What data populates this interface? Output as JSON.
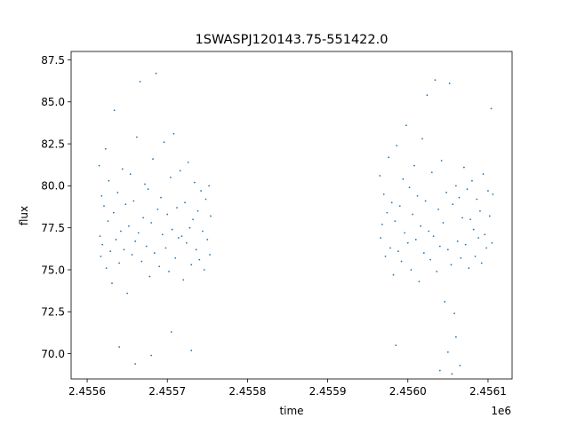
{
  "chart_data": {
    "type": "scatter",
    "title": "1SWASPJ120143.75-551422.0",
    "xlabel": "time",
    "ylabel": "flux",
    "x_offset_label": "1e6",
    "xlim": [
      2455580,
      2456130
    ],
    "ylim": [
      68.5,
      88.0
    ],
    "x_ticks": [
      2455600,
      2455700,
      2455800,
      2455900,
      2456000,
      2456100
    ],
    "x_tick_labels": [
      "2.4556",
      "2.4557",
      "2.4558",
      "2.4559",
      "2.4560",
      "2.4561"
    ],
    "y_ticks": [
      70.0,
      72.5,
      75.0,
      77.5,
      80.0,
      82.5,
      85.0,
      87.5
    ],
    "y_tick_labels": [
      "70.0",
      "72.5",
      "75.0",
      "77.5",
      "80.0",
      "82.5",
      "85.0",
      "87.5"
    ],
    "grid": false,
    "marker_color": "#1f77b4",
    "series": [
      {
        "values": [
          [
            2455615,
            81.2
          ],
          [
            2455616,
            77.0
          ],
          [
            2455617,
            75.8
          ],
          [
            2455618,
            79.4
          ],
          [
            2455619,
            76.5
          ],
          [
            2455621,
            78.8
          ],
          [
            2455623,
            82.2
          ],
          [
            2455624,
            75.1
          ],
          [
            2455626,
            77.9
          ],
          [
            2455627,
            80.3
          ],
          [
            2455629,
            76.1
          ],
          [
            2455631,
            74.2
          ],
          [
            2455633,
            78.4
          ],
          [
            2455634,
            84.5
          ],
          [
            2455636,
            76.8
          ],
          [
            2455638,
            79.6
          ],
          [
            2455640,
            75.4
          ],
          [
            2455642,
            77.3
          ],
          [
            2455644,
            81.0
          ],
          [
            2455646,
            76.2
          ],
          [
            2455648,
            78.9
          ],
          [
            2455650,
            73.6
          ],
          [
            2455652,
            77.6
          ],
          [
            2455654,
            80.7
          ],
          [
            2455656,
            75.9
          ],
          [
            2455658,
            79.1
          ],
          [
            2455660,
            76.7
          ],
          [
            2455662,
            82.9
          ],
          [
            2455664,
            77.2
          ],
          [
            2455666,
            86.2
          ],
          [
            2455668,
            75.5
          ],
          [
            2455670,
            78.1
          ],
          [
            2455672,
            80.1
          ],
          [
            2455674,
            76.4
          ],
          [
            2455676,
            79.8
          ],
          [
            2455678,
            74.6
          ],
          [
            2455680,
            77.8
          ],
          [
            2455682,
            81.6
          ],
          [
            2455684,
            76.0
          ],
          [
            2455686,
            86.7
          ],
          [
            2455688,
            78.6
          ],
          [
            2455690,
            75.2
          ],
          [
            2455692,
            79.3
          ],
          [
            2455694,
            77.1
          ],
          [
            2455696,
            82.6
          ],
          [
            2455698,
            76.3
          ],
          [
            2455700,
            78.3
          ],
          [
            2455702,
            74.9
          ],
          [
            2455704,
            80.5
          ],
          [
            2455706,
            77.4
          ],
          [
            2455708,
            83.1
          ],
          [
            2455710,
            75.7
          ],
          [
            2455712,
            78.7
          ],
          [
            2455714,
            76.9
          ],
          [
            2455716,
            80.9
          ],
          [
            2455718,
            77.0
          ],
          [
            2455720,
            74.4
          ],
          [
            2455722,
            79.0
          ],
          [
            2455724,
            76.6
          ],
          [
            2455726,
            81.4
          ],
          [
            2455728,
            77.5
          ],
          [
            2455730,
            75.3
          ],
          [
            2455732,
            78.0
          ],
          [
            2455734,
            80.2
          ],
          [
            2455736,
            76.2
          ],
          [
            2455738,
            78.5
          ],
          [
            2455740,
            75.6
          ],
          [
            2455742,
            79.7
          ],
          [
            2455744,
            77.3
          ],
          [
            2455746,
            75.0
          ],
          [
            2455748,
            79.2
          ],
          [
            2455750,
            76.8
          ],
          [
            2455752,
            80.0
          ],
          [
            2455753,
            75.9
          ],
          [
            2455754,
            78.2
          ],
          [
            2455640,
            70.4
          ],
          [
            2455660,
            69.4
          ],
          [
            2455680,
            69.9
          ],
          [
            2455705,
            71.3
          ],
          [
            2455730,
            70.2
          ],
          [
            2455965,
            80.6
          ],
          [
            2455966,
            76.9
          ],
          [
            2455968,
            77.7
          ],
          [
            2455970,
            79.5
          ],
          [
            2455972,
            75.8
          ],
          [
            2455974,
            78.4
          ],
          [
            2455976,
            81.7
          ],
          [
            2455978,
            76.3
          ],
          [
            2455980,
            79.0
          ],
          [
            2455982,
            74.7
          ],
          [
            2455984,
            77.9
          ],
          [
            2455986,
            82.4
          ],
          [
            2455988,
            76.1
          ],
          [
            2455990,
            78.8
          ],
          [
            2455992,
            75.5
          ],
          [
            2455994,
            80.4
          ],
          [
            2455996,
            77.2
          ],
          [
            2455998,
            83.6
          ],
          [
            2456000,
            76.6
          ],
          [
            2456002,
            79.9
          ],
          [
            2456004,
            75.0
          ],
          [
            2456006,
            78.3
          ],
          [
            2456008,
            81.2
          ],
          [
            2456010,
            76.8
          ],
          [
            2456012,
            79.4
          ],
          [
            2456014,
            74.3
          ],
          [
            2456016,
            77.6
          ],
          [
            2456018,
            82.8
          ],
          [
            2456020,
            76.0
          ],
          [
            2456022,
            79.1
          ],
          [
            2456024,
            85.4
          ],
          [
            2456026,
            77.3
          ],
          [
            2456028,
            75.6
          ],
          [
            2456030,
            80.8
          ],
          [
            2456032,
            77.0
          ],
          [
            2456034,
            86.3
          ],
          [
            2456036,
            74.9
          ],
          [
            2456038,
            78.6
          ],
          [
            2456040,
            76.4
          ],
          [
            2456042,
            81.5
          ],
          [
            2456044,
            77.8
          ],
          [
            2456046,
            73.1
          ],
          [
            2456048,
            79.6
          ],
          [
            2456050,
            76.2
          ],
          [
            2456052,
            86.1
          ],
          [
            2456054,
            75.3
          ],
          [
            2456056,
            78.9
          ],
          [
            2456058,
            72.4
          ],
          [
            2456060,
            80.0
          ],
          [
            2456062,
            76.7
          ],
          [
            2456064,
            79.3
          ],
          [
            2456066,
            75.7
          ],
          [
            2456068,
            78.1
          ],
          [
            2456070,
            81.1
          ],
          [
            2456072,
            76.5
          ],
          [
            2456074,
            79.8
          ],
          [
            2456076,
            75.1
          ],
          [
            2456078,
            78.0
          ],
          [
            2456080,
            80.3
          ],
          [
            2456082,
            77.4
          ],
          [
            2456084,
            75.8
          ],
          [
            2456086,
            79.2
          ],
          [
            2456088,
            76.9
          ],
          [
            2456090,
            78.5
          ],
          [
            2456092,
            75.4
          ],
          [
            2456094,
            80.7
          ],
          [
            2456096,
            77.1
          ],
          [
            2456098,
            76.3
          ],
          [
            2456100,
            79.7
          ],
          [
            2456102,
            78.2
          ],
          [
            2456104,
            84.6
          ],
          [
            2456105,
            76.6
          ],
          [
            2456106,
            79.5
          ],
          [
            2455985,
            70.5
          ],
          [
            2456040,
            69.0
          ],
          [
            2456050,
            70.1
          ],
          [
            2456055,
            68.8
          ],
          [
            2456060,
            71.0
          ],
          [
            2456065,
            69.3
          ]
        ]
      }
    ]
  }
}
